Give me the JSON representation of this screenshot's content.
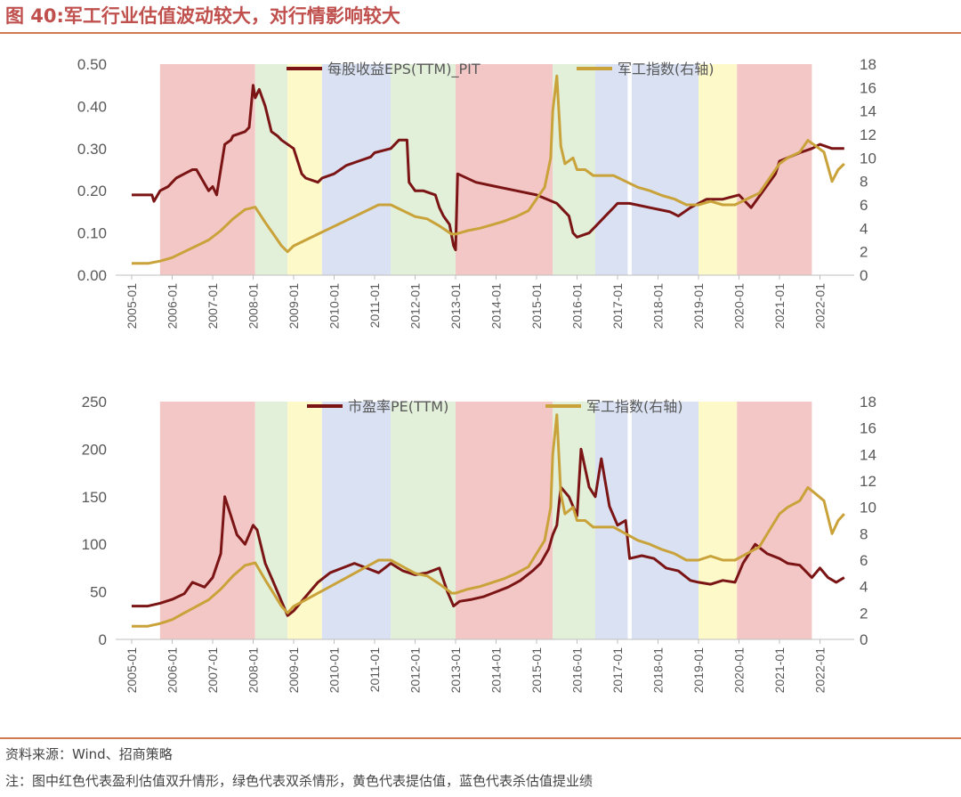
{
  "title": "图 40:军工行业估值波动较大，对行情影响较大",
  "source": "资料来源：Wind、招商策略",
  "note": "注：图中红色代表盈利估值双升情形，绿色代表双杀情形，黄色代表提估值，蓝色代表杀估值提业绩",
  "colors": {
    "eps_line": "#7b1414",
    "index_line": "#c9a23a",
    "red_band": "#f4c7c7",
    "green_band": "#e2efd9",
    "yellow_band": "#fdf9c9",
    "blue_band": "#d9e1f2"
  },
  "chart_data": [
    {
      "type": "line",
      "x_ticks": [
        "2005-01",
        "2006-01",
        "2007-01",
        "2008-01",
        "2009-01",
        "2010-01",
        "2011-01",
        "2012-01",
        "2013-01",
        "2014-01",
        "2015-01",
        "2016-01",
        "2017-01",
        "2018-01",
        "2019-01",
        "2020-01",
        "2021-01",
        "2022-01"
      ],
      "y_left": {
        "min": 0,
        "max": 0.5,
        "ticks": [
          "0.00",
          "0.10",
          "0.20",
          "0.30",
          "0.40",
          "0.50"
        ]
      },
      "y_right": {
        "min": 0,
        "max": 18,
        "ticks": [
          "0",
          "2",
          "4",
          "6",
          "8",
          "10",
          "12",
          "14",
          "16",
          "18"
        ]
      },
      "bands": [
        {
          "start": 2005.7,
          "end": 2008.05,
          "color": "red"
        },
        {
          "start": 2008.05,
          "end": 2008.85,
          "color": "green"
        },
        {
          "start": 2008.85,
          "end": 2009.7,
          "color": "yellow"
        },
        {
          "start": 2009.7,
          "end": 2011.4,
          "color": "blue"
        },
        {
          "start": 2011.4,
          "end": 2013.0,
          "color": "green"
        },
        {
          "start": 2013.0,
          "end": 2015.4,
          "color": "red"
        },
        {
          "start": 2015.4,
          "end": 2016.45,
          "color": "green"
        },
        {
          "start": 2016.45,
          "end": 2017.25,
          "color": "blue"
        },
        {
          "start": 2017.35,
          "end": 2019.0,
          "color": "blue"
        },
        {
          "start": 2019.0,
          "end": 2019.95,
          "color": "yellow"
        },
        {
          "start": 2019.95,
          "end": 2021.8,
          "color": "red"
        }
      ],
      "series": [
        {
          "name": "每股收益EPS(TTM)_PIT",
          "axis": "left",
          "x": [
            2005.0,
            2005.5,
            2005.55,
            2005.7,
            2005.9,
            2006.0,
            2006.1,
            2006.3,
            2006.5,
            2006.6,
            2006.9,
            2007.0,
            2007.1,
            2007.3,
            2007.45,
            2007.5,
            2007.8,
            2007.9,
            2008.0,
            2008.05,
            2008.15,
            2008.3,
            2008.45,
            2008.6,
            2008.7,
            2009.0,
            2009.2,
            2009.3,
            2009.6,
            2009.7,
            2010.0,
            2010.3,
            2010.6,
            2010.9,
            2011.0,
            2011.4,
            2011.6,
            2011.8,
            2011.85,
            2012.0,
            2012.2,
            2012.5,
            2012.6,
            2012.7,
            2012.85,
            2012.95,
            2013.0,
            2013.05,
            2013.5,
            2014.0,
            2014.5,
            2015.0,
            2015.5,
            2015.8,
            2015.9,
            2016.0,
            2016.3,
            2016.5,
            2016.7,
            2016.9,
            2017.0,
            2017.3,
            2017.8,
            2018.3,
            2018.5,
            2018.8,
            2019.0,
            2019.2,
            2019.6,
            2020.0,
            2020.3,
            2020.6,
            2020.9,
            2021.0,
            2021.5,
            2021.8,
            2022.0,
            2022.3,
            2022.6
          ],
          "y": [
            0.19,
            0.19,
            0.175,
            0.2,
            0.21,
            0.22,
            0.23,
            0.24,
            0.25,
            0.25,
            0.2,
            0.21,
            0.19,
            0.31,
            0.32,
            0.33,
            0.34,
            0.35,
            0.45,
            0.42,
            0.44,
            0.4,
            0.34,
            0.33,
            0.32,
            0.3,
            0.24,
            0.23,
            0.22,
            0.23,
            0.24,
            0.26,
            0.27,
            0.28,
            0.29,
            0.3,
            0.32,
            0.32,
            0.22,
            0.2,
            0.2,
            0.19,
            0.16,
            0.14,
            0.12,
            0.07,
            0.06,
            0.24,
            0.22,
            0.21,
            0.2,
            0.19,
            0.17,
            0.14,
            0.1,
            0.09,
            0.1,
            0.12,
            0.14,
            0.16,
            0.17,
            0.17,
            0.16,
            0.15,
            0.14,
            0.16,
            0.17,
            0.18,
            0.18,
            0.19,
            0.16,
            0.2,
            0.24,
            0.27,
            0.29,
            0.3,
            0.31,
            0.3,
            0.3
          ]
        },
        {
          "name": "军工指数(右轴)",
          "axis": "right",
          "x": [
            2005.0,
            2005.4,
            2005.7,
            2006.0,
            2006.3,
            2006.6,
            2006.9,
            2007.2,
            2007.5,
            2007.8,
            2008.05,
            2008.3,
            2008.5,
            2008.7,
            2008.85,
            2009.0,
            2009.3,
            2009.6,
            2009.9,
            2010.2,
            2010.5,
            2010.8,
            2011.1,
            2011.4,
            2011.7,
            2012.0,
            2012.3,
            2012.6,
            2012.9,
            2013.0,
            2013.3,
            2013.6,
            2013.9,
            2014.2,
            2014.5,
            2014.8,
            2015.0,
            2015.2,
            2015.35,
            2015.4,
            2015.5,
            2015.6,
            2015.7,
            2015.9,
            2016.0,
            2016.2,
            2016.4,
            2016.6,
            2016.9,
            2017.2,
            2017.5,
            2017.8,
            2018.1,
            2018.4,
            2018.7,
            2019.0,
            2019.3,
            2019.6,
            2019.9,
            2020.2,
            2020.5,
            2020.8,
            2021.0,
            2021.2,
            2021.5,
            2021.7,
            2021.9,
            2022.1,
            2022.3,
            2022.45,
            2022.6
          ],
          "y": [
            1.0,
            1.0,
            1.2,
            1.5,
            2.0,
            2.5,
            3.0,
            3.8,
            4.8,
            5.6,
            5.8,
            4.5,
            3.5,
            2.5,
            2.0,
            2.5,
            3.0,
            3.5,
            4.0,
            4.5,
            5.0,
            5.5,
            6.0,
            6.0,
            5.5,
            5.0,
            4.8,
            4.2,
            3.5,
            3.5,
            3.8,
            4.0,
            4.3,
            4.6,
            5.0,
            5.5,
            6.5,
            7.5,
            10.0,
            14.0,
            17.0,
            11.0,
            9.5,
            10.0,
            9.0,
            9.0,
            8.5,
            8.5,
            8.5,
            8.0,
            7.5,
            7.2,
            6.8,
            6.5,
            6.0,
            6.0,
            6.3,
            6.0,
            6.0,
            6.5,
            7.0,
            8.5,
            9.5,
            10.0,
            10.5,
            11.5,
            11.0,
            10.5,
            8.0,
            9.0,
            9.5
          ]
        }
      ]
    },
    {
      "type": "line",
      "x_ticks": [
        "2005-01",
        "2006-01",
        "2007-01",
        "2008-01",
        "2009-01",
        "2010-01",
        "2011-01",
        "2012-01",
        "2013-01",
        "2014-01",
        "2015-01",
        "2016-01",
        "2017-01",
        "2018-01",
        "2019-01",
        "2020-01",
        "2021-01",
        "2022-01"
      ],
      "y_left": {
        "min": 0,
        "max": 250,
        "ticks": [
          "0",
          "50",
          "100",
          "150",
          "200",
          "250"
        ]
      },
      "y_right": {
        "min": 0,
        "max": 18,
        "ticks": [
          "0",
          "2",
          "4",
          "6",
          "8",
          "10",
          "12",
          "14",
          "16",
          "18"
        ]
      },
      "bands": [
        {
          "start": 2005.7,
          "end": 2008.05,
          "color": "red"
        },
        {
          "start": 2008.05,
          "end": 2008.85,
          "color": "green"
        },
        {
          "start": 2008.85,
          "end": 2009.7,
          "color": "yellow"
        },
        {
          "start": 2009.7,
          "end": 2011.4,
          "color": "blue"
        },
        {
          "start": 2011.4,
          "end": 2013.0,
          "color": "green"
        },
        {
          "start": 2013.0,
          "end": 2015.4,
          "color": "red"
        },
        {
          "start": 2015.4,
          "end": 2016.45,
          "color": "green"
        },
        {
          "start": 2016.45,
          "end": 2017.25,
          "color": "blue"
        },
        {
          "start": 2017.35,
          "end": 2019.0,
          "color": "blue"
        },
        {
          "start": 2019.0,
          "end": 2019.95,
          "color": "yellow"
        },
        {
          "start": 2019.95,
          "end": 2021.8,
          "color": "red"
        }
      ],
      "series": [
        {
          "name": "市盈率PE(TTM)",
          "axis": "left",
          "x": [
            2005.0,
            2005.4,
            2005.7,
            2006.0,
            2006.3,
            2006.5,
            2006.8,
            2007.0,
            2007.2,
            2007.3,
            2007.45,
            2007.6,
            2007.8,
            2008.0,
            2008.1,
            2008.3,
            2008.5,
            2008.7,
            2008.85,
            2009.0,
            2009.3,
            2009.6,
            2009.9,
            2010.2,
            2010.5,
            2010.8,
            2011.1,
            2011.4,
            2011.7,
            2012.0,
            2012.3,
            2012.6,
            2012.8,
            2012.95,
            2013.1,
            2013.4,
            2013.7,
            2014.0,
            2014.3,
            2014.6,
            2014.9,
            2015.1,
            2015.3,
            2015.4,
            2015.5,
            2015.6,
            2015.8,
            2016.0,
            2016.1,
            2016.3,
            2016.45,
            2016.6,
            2016.8,
            2017.0,
            2017.2,
            2017.3,
            2017.6,
            2017.9,
            2018.2,
            2018.5,
            2018.8,
            2019.0,
            2019.3,
            2019.6,
            2019.9,
            2020.1,
            2020.4,
            2020.7,
            2021.0,
            2021.2,
            2021.5,
            2021.8,
            2022.0,
            2022.2,
            2022.4,
            2022.6
          ],
          "y": [
            35,
            35,
            38,
            42,
            48,
            60,
            55,
            65,
            90,
            150,
            130,
            110,
            100,
            120,
            115,
            80,
            60,
            40,
            25,
            30,
            45,
            60,
            70,
            75,
            80,
            75,
            70,
            80,
            72,
            68,
            70,
            75,
            50,
            35,
            40,
            42,
            45,
            50,
            55,
            62,
            72,
            80,
            95,
            110,
            120,
            160,
            150,
            130,
            200,
            160,
            150,
            190,
            140,
            120,
            125,
            85,
            88,
            85,
            75,
            72,
            62,
            60,
            58,
            62,
            60,
            80,
            100,
            90,
            85,
            80,
            78,
            65,
            75,
            65,
            60,
            65
          ]
        },
        {
          "name": "军工指数(右轴)",
          "axis": "right",
          "x": [
            2005.0,
            2005.4,
            2005.7,
            2006.0,
            2006.3,
            2006.6,
            2006.9,
            2007.2,
            2007.5,
            2007.8,
            2008.05,
            2008.3,
            2008.5,
            2008.7,
            2008.85,
            2009.0,
            2009.3,
            2009.6,
            2009.9,
            2010.2,
            2010.5,
            2010.8,
            2011.1,
            2011.4,
            2011.7,
            2012.0,
            2012.3,
            2012.6,
            2012.9,
            2013.0,
            2013.3,
            2013.6,
            2013.9,
            2014.2,
            2014.5,
            2014.8,
            2015.0,
            2015.2,
            2015.35,
            2015.4,
            2015.5,
            2015.6,
            2015.7,
            2015.9,
            2016.0,
            2016.2,
            2016.4,
            2016.6,
            2016.9,
            2017.2,
            2017.5,
            2017.8,
            2018.1,
            2018.4,
            2018.7,
            2019.0,
            2019.3,
            2019.6,
            2019.9,
            2020.2,
            2020.5,
            2020.8,
            2021.0,
            2021.2,
            2021.5,
            2021.7,
            2021.9,
            2022.1,
            2022.3,
            2022.45,
            2022.6
          ],
          "y": [
            1.0,
            1.0,
            1.2,
            1.5,
            2.0,
            2.5,
            3.0,
            3.8,
            4.8,
            5.6,
            5.8,
            4.5,
            3.5,
            2.5,
            2.0,
            2.5,
            3.0,
            3.5,
            4.0,
            4.5,
            5.0,
            5.5,
            6.0,
            6.0,
            5.5,
            5.0,
            4.8,
            4.2,
            3.5,
            3.5,
            3.8,
            4.0,
            4.3,
            4.6,
            5.0,
            5.5,
            6.5,
            7.5,
            10.0,
            14.0,
            17.0,
            11.0,
            9.5,
            10.0,
            9.0,
            9.0,
            8.5,
            8.5,
            8.5,
            8.0,
            7.5,
            7.2,
            6.8,
            6.5,
            6.0,
            6.0,
            6.3,
            6.0,
            6.0,
            6.5,
            7.0,
            8.5,
            9.5,
            10.0,
            10.5,
            11.5,
            11.0,
            10.5,
            8.0,
            9.0,
            9.5
          ]
        }
      ]
    }
  ]
}
